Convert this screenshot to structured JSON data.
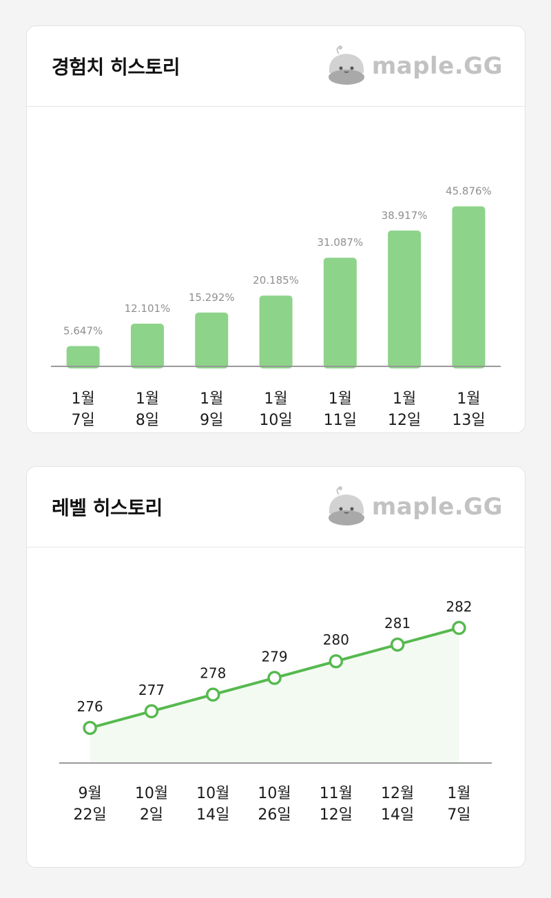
{
  "exp_card": {
    "title": "경험치 히스토리",
    "logo_text": "maple.GG"
  },
  "level_card": {
    "title": "레벨 히스토리",
    "logo_text": "maple.GG"
  },
  "colors": {
    "bar": "#8dd38a",
    "line": "#56b94f",
    "axis": "#999999",
    "label": "#8f8f8f"
  },
  "chart_data": [
    {
      "type": "bar",
      "title": "경험치 히스토리",
      "categories": [
        [
          "1월",
          "7일"
        ],
        [
          "1월",
          "8일"
        ],
        [
          "1월",
          "9일"
        ],
        [
          "1월",
          "10일"
        ],
        [
          "1월",
          "11일"
        ],
        [
          "1월",
          "12일"
        ],
        [
          "1월",
          "13일"
        ]
      ],
      "values": [
        5.647,
        12.101,
        15.292,
        20.185,
        31.087,
        38.917,
        45.876
      ],
      "labels": [
        "5.647%",
        "12.101%",
        "15.292%",
        "20.185%",
        "31.087%",
        "38.917%",
        "45.876%"
      ],
      "ylim": [
        0,
        48
      ]
    },
    {
      "type": "line",
      "title": "레벨 히스토리",
      "categories": [
        [
          "9월",
          "22일"
        ],
        [
          "10월",
          "2일"
        ],
        [
          "10월",
          "14일"
        ],
        [
          "10월",
          "26일"
        ],
        [
          "11월",
          "12일"
        ],
        [
          "12월",
          "14일"
        ],
        [
          "1월",
          "7일"
        ]
      ],
      "values": [
        276,
        277,
        278,
        279,
        280,
        281,
        282
      ],
      "labels": [
        "276",
        "277",
        "278",
        "279",
        "280",
        "281",
        "282"
      ],
      "ylim": [
        274,
        284
      ]
    }
  ]
}
